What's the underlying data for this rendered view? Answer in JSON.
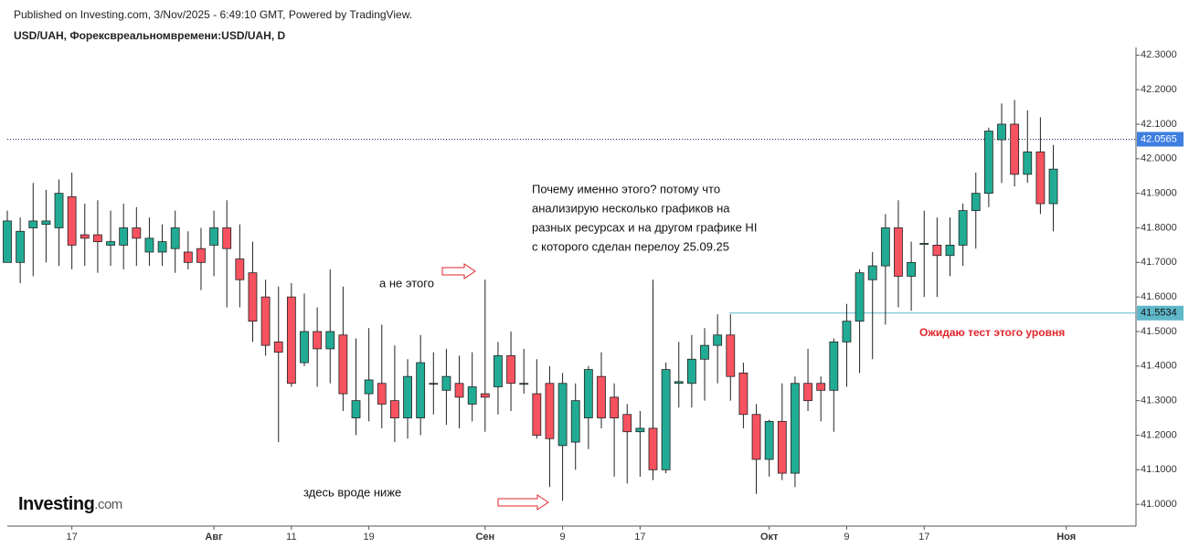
{
  "chart_data": {
    "type": "candlestick",
    "source": "Published on Investing.com, 3/Nov/2025 - 6:49:10 GMT, Powered by TradingView.",
    "title": "USD/UAH, Форексвреальномвремени:USD/UAH, D",
    "brand": "Investing",
    "brand_suffix": ".com",
    "note_lines": [
      "Почему именно этого? потому что",
      "анализирую несколько графиков на",
      "разных ресурсах  и на другом графике HI",
      "с которого сделан перелоу 25.09.25"
    ],
    "annotations": [
      "а не этого",
      "здесь вроде ниже",
      "Ожидаю тест этого уровня"
    ],
    "categories": [
      null,
      null,
      null,
      null,
      null,
      "17",
      null,
      null,
      null,
      null,
      null,
      null,
      null,
      null,
      null,
      null,
      "Авг",
      null,
      null,
      null,
      null,
      null,
      "11",
      null,
      null,
      null,
      null,
      null,
      "19",
      null,
      null,
      null,
      null,
      null,
      null,
      null,
      null,
      "Сен",
      null,
      null,
      null,
      null,
      null,
      "9",
      null,
      null,
      null,
      null,
      null,
      "17",
      null,
      null,
      null,
      null,
      null,
      null,
      null,
      null,
      null,
      "Окт",
      null,
      null,
      null,
      null,
      null,
      "9",
      null,
      null,
      null,
      null,
      null,
      "17",
      null,
      null,
      null,
      null,
      null,
      null,
      null,
      null,
      null,
      null,
      "Ноя"
    ],
    "open": [
      41.7,
      41.7,
      41.8,
      41.81,
      41.8,
      41.89,
      41.78,
      41.78,
      41.75,
      41.75,
      41.8,
      41.73,
      41.73,
      41.74,
      41.73,
      41.74,
      41.75,
      41.8,
      41.71,
      41.67,
      41.6,
      41.47,
      41.6,
      41.41,
      41.5,
      41.45,
      41.49,
      41.25,
      41.32,
      41.35,
      41.3,
      41.25,
      41.25,
      41.35,
      41.33,
      41.35,
      41.29,
      41.32,
      41.34,
      41.43,
      41.35,
      41.32,
      41.35,
      41.17,
      41.18,
      41.25,
      41.37,
      41.31,
      41.26,
      41.21,
      41.22,
      41.1,
      41.35,
      41.35,
      41.42,
      41.46,
      41.49,
      41.38,
      41.26,
      41.13,
      41.24,
      41.09,
      41.35,
      41.35,
      41.33,
      41.47,
      41.53,
      41.65,
      41.69,
      41.8,
      41.66,
      41.755,
      41.75,
      41.72,
      41.75,
      41.85,
      41.9,
      42.055,
      42.1,
      41.955,
      42.02,
      41.87,
      null
    ],
    "high": [
      41.85,
      41.83,
      41.93,
      41.91,
      41.94,
      41.96,
      41.87,
      41.88,
      41.85,
      41.87,
      41.86,
      41.83,
      41.81,
      41.85,
      41.79,
      41.8,
      41.85,
      41.88,
      41.81,
      41.76,
      41.65,
      41.63,
      41.64,
      41.61,
      41.57,
      41.68,
      41.63,
      41.48,
      41.51,
      41.52,
      41.46,
      41.42,
      41.49,
      41.44,
      41.45,
      41.43,
      41.44,
      41.65,
      41.47,
      41.5,
      41.45,
      41.42,
      41.4,
      41.38,
      41.35,
      41.4,
      41.44,
      41.35,
      41.29,
      41.27,
      41.65,
      41.41,
      41.47,
      41.49,
      41.51,
      41.55,
      41.55,
      41.41,
      41.29,
      41.245,
      41.35,
      41.37,
      41.45,
      41.37,
      41.48,
      41.58,
      41.68,
      41.73,
      41.84,
      41.88,
      41.76,
      41.85,
      41.83,
      41.83,
      41.87,
      41.96,
      42.09,
      42.16,
      42.17,
      42.14,
      42.12,
      42.04,
      null
    ],
    "low": [
      41.7,
      41.64,
      41.66,
      41.7,
      41.69,
      41.68,
      41.69,
      41.67,
      41.69,
      41.68,
      41.69,
      41.69,
      41.69,
      41.67,
      41.68,
      41.62,
      41.66,
      41.57,
      41.57,
      41.47,
      41.43,
      41.18,
      41.34,
      41.4,
      41.34,
      41.35,
      41.27,
      41.2,
      41.24,
      41.22,
      41.18,
      41.19,
      41.2,
      41.26,
      41.23,
      41.22,
      41.24,
      41.21,
      41.26,
      41.27,
      41.32,
      41.19,
      41.05,
      41.01,
      41.1,
      41.16,
      41.22,
      41.08,
      41.06,
      41.08,
      41.07,
      41.09,
      41.28,
      41.28,
      41.3,
      41.35,
      41.3,
      41.22,
      41.03,
      41.08,
      41.07,
      41.05,
      41.27,
      41.24,
      41.21,
      41.34,
      41.38,
      41.42,
      41.52,
      41.57,
      41.56,
      41.6,
      41.6,
      41.66,
      41.69,
      41.74,
      41.86,
      41.93,
      41.92,
      41.93,
      41.84,
      41.79,
      null
    ],
    "close": [
      41.82,
      41.79,
      41.82,
      41.82,
      41.9,
      41.75,
      41.77,
      41.76,
      41.76,
      41.8,
      41.77,
      41.77,
      41.76,
      41.8,
      41.7,
      41.7,
      41.8,
      41.74,
      41.65,
      41.53,
      41.46,
      41.44,
      41.35,
      41.5,
      41.45,
      41.5,
      41.32,
      41.3,
      41.36,
      41.29,
      41.25,
      41.37,
      41.41,
      41.35,
      41.37,
      41.31,
      41.34,
      41.31,
      41.43,
      41.35,
      41.35,
      41.2,
      41.19,
      41.35,
      41.3,
      41.39,
      41.25,
      41.25,
      41.21,
      41.22,
      41.1,
      41.39,
      41.355,
      41.42,
      41.46,
      41.49,
      41.37,
      41.26,
      41.13,
      41.24,
      41.09,
      41.35,
      41.3,
      41.33,
      41.47,
      41.53,
      41.67,
      41.69,
      41.8,
      41.66,
      41.7,
      41.755,
      41.72,
      41.75,
      41.85,
      41.9,
      42.08,
      42.1,
      41.955,
      42.02,
      41.87,
      41.97,
      null
    ],
    "up_color": "#22ab94",
    "down_color": "#f7525f",
    "ylim": [
      40.937,
      42.322
    ],
    "yticks": [
      {
        "value": 41.0,
        "label": "41.0000"
      },
      {
        "value": 41.1,
        "label": "41.1000"
      },
      {
        "value": 41.2,
        "label": "41.2000"
      },
      {
        "value": 41.3,
        "label": "41.3000"
      },
      {
        "value": 41.4,
        "label": "41.4000"
      },
      {
        "value": 41.5,
        "label": "41.5000"
      },
      {
        "value": 41.6,
        "label": "41.6000"
      },
      {
        "value": 41.7,
        "label": "41.7000"
      },
      {
        "value": 41.8,
        "label": "41.8000"
      },
      {
        "value": 41.9,
        "label": "41.9000"
      },
      {
        "value": 42.0,
        "label": "42.0000"
      },
      {
        "value": 42.1,
        "label": "42.1000"
      },
      {
        "value": 42.2,
        "label": "42.2000"
      },
      {
        "value": 42.3,
        "label": "42.3000"
      }
    ],
    "grid": false,
    "level": 41.5534,
    "level_color": "#5fb7c9",
    "last_price": 42.0565,
    "last_price_color": "#3d7ee0"
  }
}
